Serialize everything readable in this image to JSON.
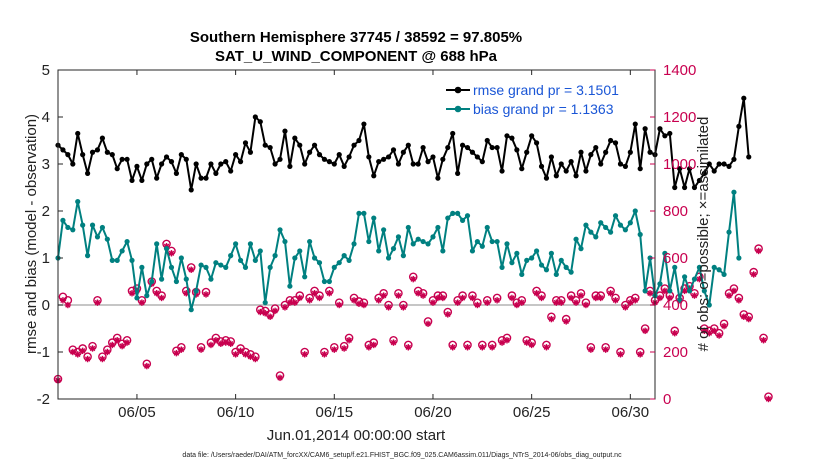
{
  "chart_data": {
    "type": "line",
    "title_line1": "Southern Hemisphere 37745 / 38592 = 97.805%",
    "title_line2": "SAT_U_WIND_COMPONENT @ 688 hPa",
    "xlabel": "Jun.01,2014 00:00:00 start",
    "ylabel_left": "rmse and bias (model - observation)",
    "ylabel_right": "# of obs: o=possible; ×=assimilated",
    "footnote": "data file: /Users/raeder/DAI/ATM_forcXX/CAM6_setup/f.e21.FHIST_BGC.f09_025.CAM6assim.011/Diags_NTrS_2014-06/obs_diag_output.nc",
    "xlim": [
      1.0,
      31.25
    ],
    "ylim_left": [
      -2,
      5
    ],
    "ylim_right": [
      0,
      1400
    ],
    "x_ticks": [
      5,
      10,
      15,
      20,
      25,
      30
    ],
    "x_tick_labels": [
      "06/05",
      "06/10",
      "06/15",
      "06/20",
      "06/25",
      "06/30"
    ],
    "y_ticks_left": [
      "-2",
      "-1",
      "0",
      "1",
      "2",
      "3",
      "4",
      "5"
    ],
    "y_ticks_right": [
      "0",
      "200",
      "400",
      "600",
      "800",
      "1000",
      "1200",
      "1400"
    ],
    "colors": {
      "rmse": "#000000",
      "bias": "#008080",
      "obs": "#c8004f",
      "zero": "#b3b3b3",
      "legend_text": "#1a56d6"
    },
    "x_start": 1.0,
    "x_step": 0.25,
    "series": [
      {
        "name": "rmse grand pr = 3.1501",
        "axis": "left",
        "values": [
          3.4,
          3.3,
          3.2,
          3.0,
          3.65,
          3.2,
          2.8,
          3.25,
          3.3,
          3.55,
          3.25,
          3.2,
          2.9,
          3.1,
          3.1,
          2.65,
          2.95,
          2.65,
          3.0,
          3.1,
          2.7,
          3.0,
          3.15,
          3.05,
          2.8,
          3.2,
          3.1,
          2.45,
          3.0,
          2.7,
          2.7,
          3.0,
          2.8,
          3.0,
          3.05,
          2.85,
          3.2,
          3.05,
          3.45,
          3.25,
          4.0,
          3.9,
          3.4,
          3.35,
          3.0,
          3.1,
          3.7,
          2.95,
          3.55,
          3.4,
          3.0,
          3.25,
          3.4,
          3.2,
          3.1,
          3.05,
          3.0,
          3.2,
          2.95,
          3.15,
          3.4,
          3.5,
          3.85,
          3.15,
          2.75,
          3.05,
          3.1,
          3.15,
          3.3,
          3.0,
          3.25,
          3.4,
          3.0,
          3.0,
          3.35,
          3.05,
          3.15,
          2.7,
          3.1,
          3.35,
          3.65,
          2.8,
          3.4,
          3.35,
          3.25,
          3.15,
          3.05,
          3.5,
          3.35,
          3.35,
          2.85,
          3.6,
          3.55,
          3.3,
          2.9,
          3.25,
          3.6,
          3.45,
          2.95,
          2.7,
          3.15,
          2.75,
          3.0,
          2.85,
          3.05,
          2.75,
          3.25,
          2.85,
          3.2,
          3.35,
          3.0,
          3.25,
          3.5,
          3.45,
          3.0,
          2.95,
          3.25,
          3.85,
          2.9,
          3.75,
          3.25,
          3.2,
          3.75,
          3.6,
          3.65,
          2.5,
          2.9,
          2.5,
          2.9,
          2.5,
          2.65,
          2.8,
          3.0,
          2.85,
          3.0,
          3.0,
          2.95,
          3.1,
          3.8,
          4.4,
          3.15
        ]
      },
      {
        "name": "bias grand pr = 1.1363",
        "axis": "left",
        "values": [
          1.0,
          1.8,
          1.65,
          1.6,
          2.2,
          1.7,
          1.05,
          1.7,
          1.45,
          1.65,
          1.4,
          0.95,
          0.95,
          1.15,
          1.35,
          0.95,
          0.15,
          0.8,
          0.2,
          0.5,
          1.3,
          0.55,
          1.2,
          0.8,
          0.5,
          1.0,
          0.55,
          -0.1,
          0.3,
          0.85,
          0.8,
          0.55,
          0.9,
          0.85,
          0.8,
          1.05,
          1.3,
          0.95,
          0.8,
          1.3,
          0.95,
          1.15,
          0.05,
          0.8,
          1.05,
          1.6,
          1.35,
          0.4,
          1.0,
          1.15,
          0.6,
          1.35,
          1.0,
          0.9,
          0.5,
          0.5,
          0.8,
          0.9,
          1.05,
          0.95,
          1.3,
          1.95,
          1.95,
          1.35,
          1.85,
          1.15,
          1.6,
          1.0,
          1.2,
          1.45,
          1.05,
          1.65,
          1.3,
          1.4,
          1.35,
          1.3,
          1.45,
          1.65,
          1.15,
          1.85,
          1.95,
          1.95,
          1.8,
          1.9,
          1.15,
          1.35,
          1.25,
          1.65,
          1.35,
          1.35,
          0.8,
          1.3,
          0.9,
          1.1,
          0.65,
          0.95,
          1.0,
          1.15,
          0.85,
          0.75,
          1.1,
          0.65,
          0.95,
          0.8,
          0.7,
          1.4,
          1.2,
          1.7,
          1.55,
          1.45,
          1.75,
          1.65,
          1.55,
          1.9,
          1.7,
          1.6,
          1.75,
          2.0,
          1.5,
          0.3,
          1.0,
          0.2,
          0.45,
          1.1,
          0.3,
          0.8,
          0.1,
          0.6,
          0.3,
          0.55,
          0.8,
          0.3,
          0.0,
          0.8,
          0.75,
          0.65,
          1.55,
          2.4,
          1.0
        ]
      },
      {
        "name": "obs possible",
        "axis": "right",
        "values": [
          85,
          435,
          420,
          210,
          200,
          215,
          180,
          225,
          420,
          180,
          210,
          240,
          260,
          235,
          250,
          460,
          470,
          420,
          150,
          500,
          460,
          440,
          660,
          630,
          205,
          220,
          460,
          560,
          455,
          220,
          455,
          240,
          260,
          245,
          250,
          245,
          200,
          215,
          200,
          190,
          180,
          380,
          375,
          360,
          385,
          100,
          400,
          420,
          420,
          440,
          200,
          430,
          460,
          440,
          200,
          460,
          220,
          410,
          225,
          260,
          430,
          415,
          410,
          230,
          240,
          430,
          450,
          400,
          250,
          450,
          400,
          230,
          520,
          460,
          450,
          330,
          420,
          440,
          440,
          370,
          230,
          420,
          440,
          230,
          440,
          410,
          230,
          420,
          230,
          430,
          250,
          260,
          440,
          410,
          420,
          250,
          240,
          460,
          440,
          230,
          350,
          420,
          420,
          340,
          440,
          420,
          450,
          410,
          220,
          440,
          440,
          220,
          460,
          430,
          200,
          400,
          420,
          430,
          200,
          300,
          460,
          420,
          440,
          470,
          440,
          290,
          430,
          470,
          480,
          450,
          520,
          300,
          290,
          300,
          280,
          320,
          450,
          470,
          430,
          360,
          350,
          540,
          640,
          260,
          10
        ]
      },
      {
        "name": "obs assimilated",
        "axis": "right",
        "values": [
          80,
          420,
          400,
          200,
          190,
          205,
          170,
          215,
          410,
          170,
          200,
          230,
          250,
          225,
          240,
          450,
          460,
          410,
          140,
          490,
          450,
          430,
          650,
          620,
          195,
          210,
          450,
          550,
          445,
          210,
          445,
          230,
          250,
          235,
          240,
          235,
          190,
          205,
          190,
          180,
          170,
          370,
          365,
          350,
          375,
          90,
          390,
          410,
          410,
          430,
          190,
          420,
          450,
          430,
          190,
          450,
          210,
          400,
          215,
          250,
          420,
          405,
          400,
          220,
          230,
          420,
          440,
          390,
          240,
          440,
          390,
          220,
          510,
          450,
          440,
          320,
          410,
          430,
          430,
          360,
          220,
          410,
          430,
          220,
          430,
          400,
          220,
          410,
          220,
          420,
          240,
          250,
          430,
          400,
          410,
          240,
          230,
          450,
          430,
          220,
          340,
          410,
          410,
          330,
          430,
          410,
          440,
          400,
          210,
          430,
          430,
          210,
          450,
          420,
          190,
          390,
          410,
          420,
          190,
          290,
          450,
          410,
          430,
          460,
          430,
          280,
          420,
          460,
          470,
          440,
          510,
          290,
          280,
          290,
          270,
          310,
          440,
          460,
          420,
          350,
          340,
          530,
          630,
          250,
          0
        ]
      }
    ]
  }
}
